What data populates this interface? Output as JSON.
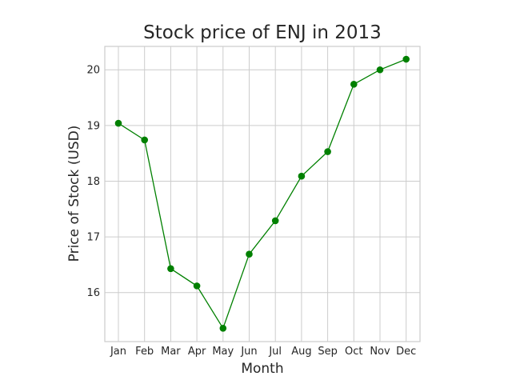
{
  "chart_data": {
    "type": "line",
    "title": "Stock price of ENJ in 2013",
    "xlabel": "Month",
    "ylabel": "Price of Stock (USD)",
    "categories": [
      "Jan",
      "Feb",
      "Mar",
      "Apr",
      "May",
      "Jun",
      "Jul",
      "Aug",
      "Sep",
      "Oct",
      "Nov",
      "Dec"
    ],
    "series": [
      {
        "values": [
          19.04,
          18.74,
          16.43,
          16.12,
          15.36,
          16.69,
          17.29,
          18.09,
          18.53,
          19.74,
          20.0,
          20.19
        ],
        "color": "#008000",
        "marker": "circle"
      }
    ],
    "ylim": [
      15.12,
      20.42
    ],
    "yticks": [
      16,
      17,
      18,
      19,
      20
    ],
    "grid": true
  }
}
